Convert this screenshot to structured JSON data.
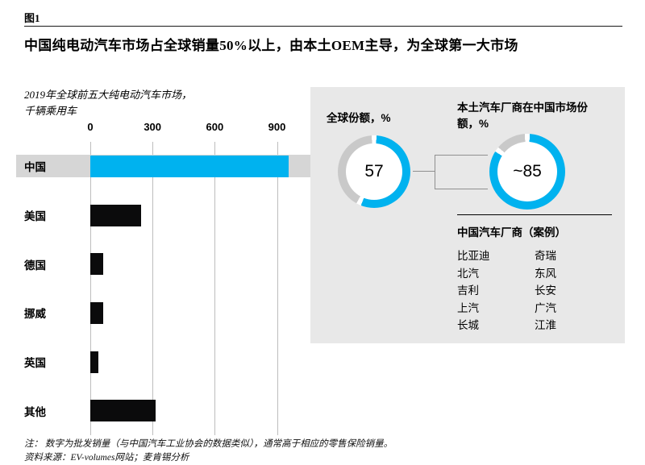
{
  "figure_label": "图1",
  "title": "中国纯电动汽车市场占全球销量50%以上，由本土OEM主导，为全球第一大市场",
  "chart_data": {
    "type": "bar",
    "orientation": "horizontal",
    "title": "2019年全球前五大纯电动汽车市场，",
    "unit": "千辆乘用车",
    "categories": [
      "中国",
      "美国",
      "德国",
      "挪威",
      "英国",
      "其他"
    ],
    "values": [
      957,
      245,
      63,
      61,
      38,
      316
    ],
    "highlight_index": 0,
    "x_ticks": [
      0,
      300,
      600,
      900
    ],
    "xlim": [
      0,
      1100
    ],
    "grid": true,
    "bar_color": "#0b0b0c"
  },
  "donuts": [
    {
      "label": "全球份额，%",
      "value": 57,
      "display": "57"
    },
    {
      "label": "本土汽车厂商在中国市场份额，%",
      "value": 85,
      "display": "~85"
    }
  ],
  "oem_box": {
    "title": "中国汽车厂商（案例）",
    "col1": [
      "比亚迪",
      "北汽",
      "吉利",
      "上汽",
      "长城"
    ],
    "col2": [
      "奇瑞",
      "东风",
      "长安",
      "广汽",
      "江淮"
    ]
  },
  "footnotes": {
    "note": "注： 数字为批发销量（与中国汽车工业协会的数据类似），通常高于相应的零售保险销量。",
    "source": "资料来源：EV-volumes网站；麦肯锡分析"
  },
  "colors": {
    "accent": "#00b2ef",
    "panel": "#e8e8e8",
    "band": "#d6d6d6",
    "track": "#c9c9c9",
    "gridline": "#bdbdbd"
  }
}
